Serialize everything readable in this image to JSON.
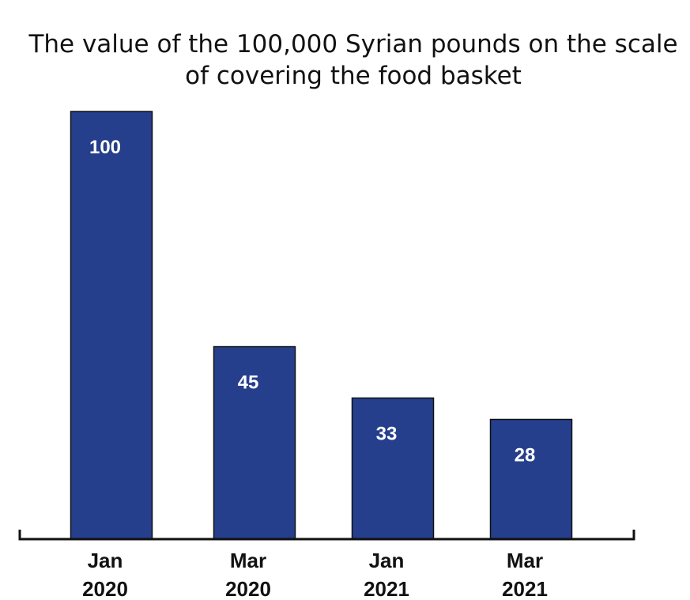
{
  "chart_data": {
    "type": "bar",
    "title": "The value of the 100,000 Syrian pounds on the scale of covering the food basket",
    "title_lines": [
      "The value of the 100,000 Syrian pounds on the scale",
      "of covering the food basket"
    ],
    "categories": [
      "Jan 2020",
      "Mar 2020",
      "Jan 2021",
      "Mar 2021"
    ],
    "category_lines": [
      [
        "Jan",
        "2020"
      ],
      [
        "Mar",
        "2020"
      ],
      [
        "Jan",
        "2021"
      ],
      [
        "Mar",
        "2021"
      ]
    ],
    "values": [
      100,
      45,
      33,
      28
    ],
    "value_labels": [
      "100",
      "45",
      "33",
      "28"
    ],
    "xlabel": "",
    "ylabel": "",
    "ylim": [
      0,
      100
    ],
    "grid": false,
    "legend": "none",
    "bar_color": "#253f8c",
    "text_color": "#111111",
    "label_color": "#ffffff"
  }
}
